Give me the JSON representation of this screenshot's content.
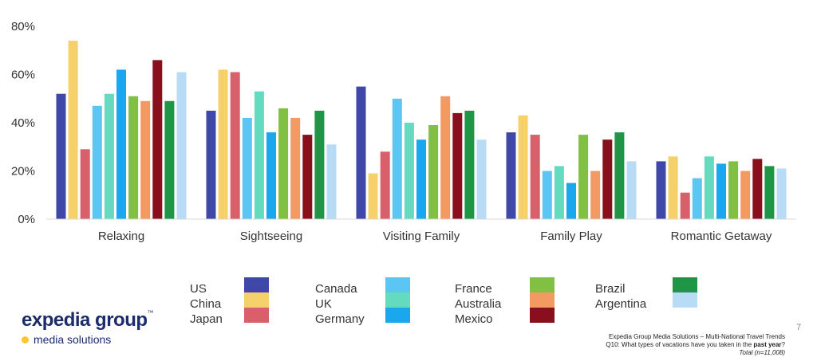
{
  "chart_data": {
    "type": "bar",
    "categories": [
      "Relaxing",
      "Sightseeing",
      "Visiting Family",
      "Family Play",
      "Romantic Getaway"
    ],
    "ylim": [
      0,
      80
    ],
    "yticks": [
      0,
      20,
      40,
      60,
      80
    ],
    "ytick_labels": [
      "0%",
      "20%",
      "40%",
      "60%",
      "80%"
    ],
    "grid": false,
    "legend_position": "bottom",
    "series": [
      {
        "name": "US",
        "color": "#3f48a8",
        "values": [
          52,
          45,
          55,
          36,
          24
        ]
      },
      {
        "name": "China",
        "color": "#f6d06b",
        "values": [
          74,
          62,
          19,
          43,
          26
        ]
      },
      {
        "name": "Japan",
        "color": "#d9606a",
        "values": [
          29,
          61,
          28,
          35,
          11
        ]
      },
      {
        "name": "Canada",
        "color": "#5bc6f3",
        "values": [
          47,
          42,
          50,
          20,
          17
        ]
      },
      {
        "name": "UK",
        "color": "#62dbbf",
        "values": [
          52,
          53,
          40,
          22,
          26
        ]
      },
      {
        "name": "Germany",
        "color": "#1aa7ed",
        "values": [
          62,
          36,
          33,
          15,
          23
        ]
      },
      {
        "name": "France",
        "color": "#82c043",
        "values": [
          51,
          46,
          39,
          35,
          24
        ]
      },
      {
        "name": "Australia",
        "color": "#f39a63",
        "values": [
          49,
          42,
          51,
          20,
          20
        ]
      },
      {
        "name": "Mexico",
        "color": "#8a0f1c",
        "values": [
          66,
          35,
          44,
          33,
          25
        ]
      },
      {
        "name": "Brazil",
        "color": "#1e9645",
        "values": [
          49,
          45,
          45,
          36,
          22
        ]
      },
      {
        "name": "Argentina",
        "color": "#b8dcf5",
        "values": [
          61,
          31,
          33,
          24,
          21
        ]
      }
    ]
  },
  "logo": {
    "name": "expedia group",
    "tm": "™",
    "subtitle": "media solutions"
  },
  "page_number": "7",
  "footer": {
    "line1": "Expedia Group Media Solutions – Multi-National Travel Trends",
    "line2_prefix": "Q10: What types of vacations have you taken in the ",
    "line2_bold": "past year",
    "line2_suffix": "?",
    "line3": "Total (n=11,008)"
  }
}
